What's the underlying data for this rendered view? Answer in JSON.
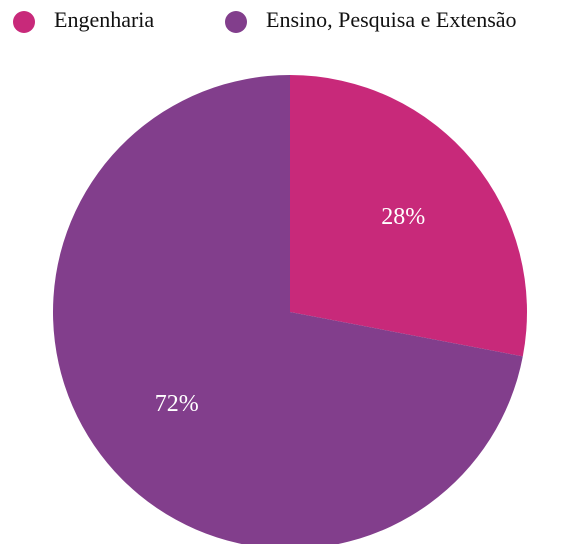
{
  "chart_data": {
    "type": "pie",
    "categories": [
      "Engenharia",
      "Ensino, Pesquisa e Extensão"
    ],
    "values": [
      28,
      72
    ],
    "value_labels": [
      "28%",
      "72%"
    ],
    "colors": [
      "#c8297a",
      "#823e8c"
    ],
    "legend": "top"
  }
}
